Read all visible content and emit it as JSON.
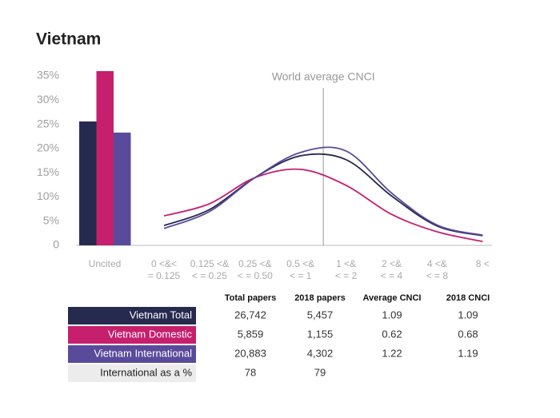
{
  "chart_data": {
    "type": "bar_line",
    "title": "Vietnam",
    "categories": [
      "Uncited",
      "0 <&<\n= 0.125",
      "0.125 <&\n< = 0.25",
      "0.25 <&\n< = 0.50",
      "0.5 <&\n< = 1",
      "1 <&\n< = 2",
      "2 <&\n< = 4",
      "4 <&\n< = 8",
      "8 <"
    ],
    "series": [
      {
        "name": "Vietnam Total",
        "color": "#272a4f",
        "values": [
          25.6,
          4.1,
          7.4,
          14,
          18.5,
          17.7,
          10.2,
          4,
          2
        ]
      },
      {
        "name": "Vietnam Domestic",
        "color": "#c51f6d",
        "values": [
          36,
          6.1,
          8.6,
          14,
          15.7,
          12.4,
          6.4,
          2.8,
          0.8
        ]
      },
      {
        "name": "Vietnam International",
        "color": "#5a4a9c",
        "values": [
          23.3,
          3.5,
          7,
          14,
          19.2,
          19.5,
          10.8,
          4.2,
          2.1
        ]
      }
    ],
    "ylim": [
      0,
      35
    ],
    "yticks": [
      0,
      {
        "value": 5,
        "label": "5%"
      },
      {
        "value": 10,
        "label": "10%"
      },
      {
        "value": 15,
        "label": "15%"
      },
      {
        "value": 20,
        "label": "20%"
      },
      {
        "value": 25,
        "label": "25%"
      },
      {
        "value": 30,
        "label": "30%"
      },
      {
        "value": 35,
        "label": "35%"
      }
    ],
    "annotation": "World average CNCI"
  },
  "table": {
    "headers": [
      "Total papers",
      "2018 papers",
      "Average CNCI",
      "2018 CNCI"
    ],
    "rows": [
      {
        "label": "Vietnam Total",
        "color": "#272a4f",
        "cells": [
          "26,742",
          "5,457",
          "1.09",
          "1.09"
        ]
      },
      {
        "label": "Vietnam Domestic",
        "color": "#c51f6d",
        "cells": [
          "5,859",
          "1,155",
          "0.62",
          "0.68"
        ]
      },
      {
        "label": "Vietnam International",
        "color": "#5a4a9c",
        "cells": [
          "20,883",
          "4,302",
          "1.22",
          "1.19"
        ]
      },
      {
        "label": "International as a %",
        "color": "#ececec",
        "cells": [
          "78",
          "79"
        ]
      }
    ]
  }
}
